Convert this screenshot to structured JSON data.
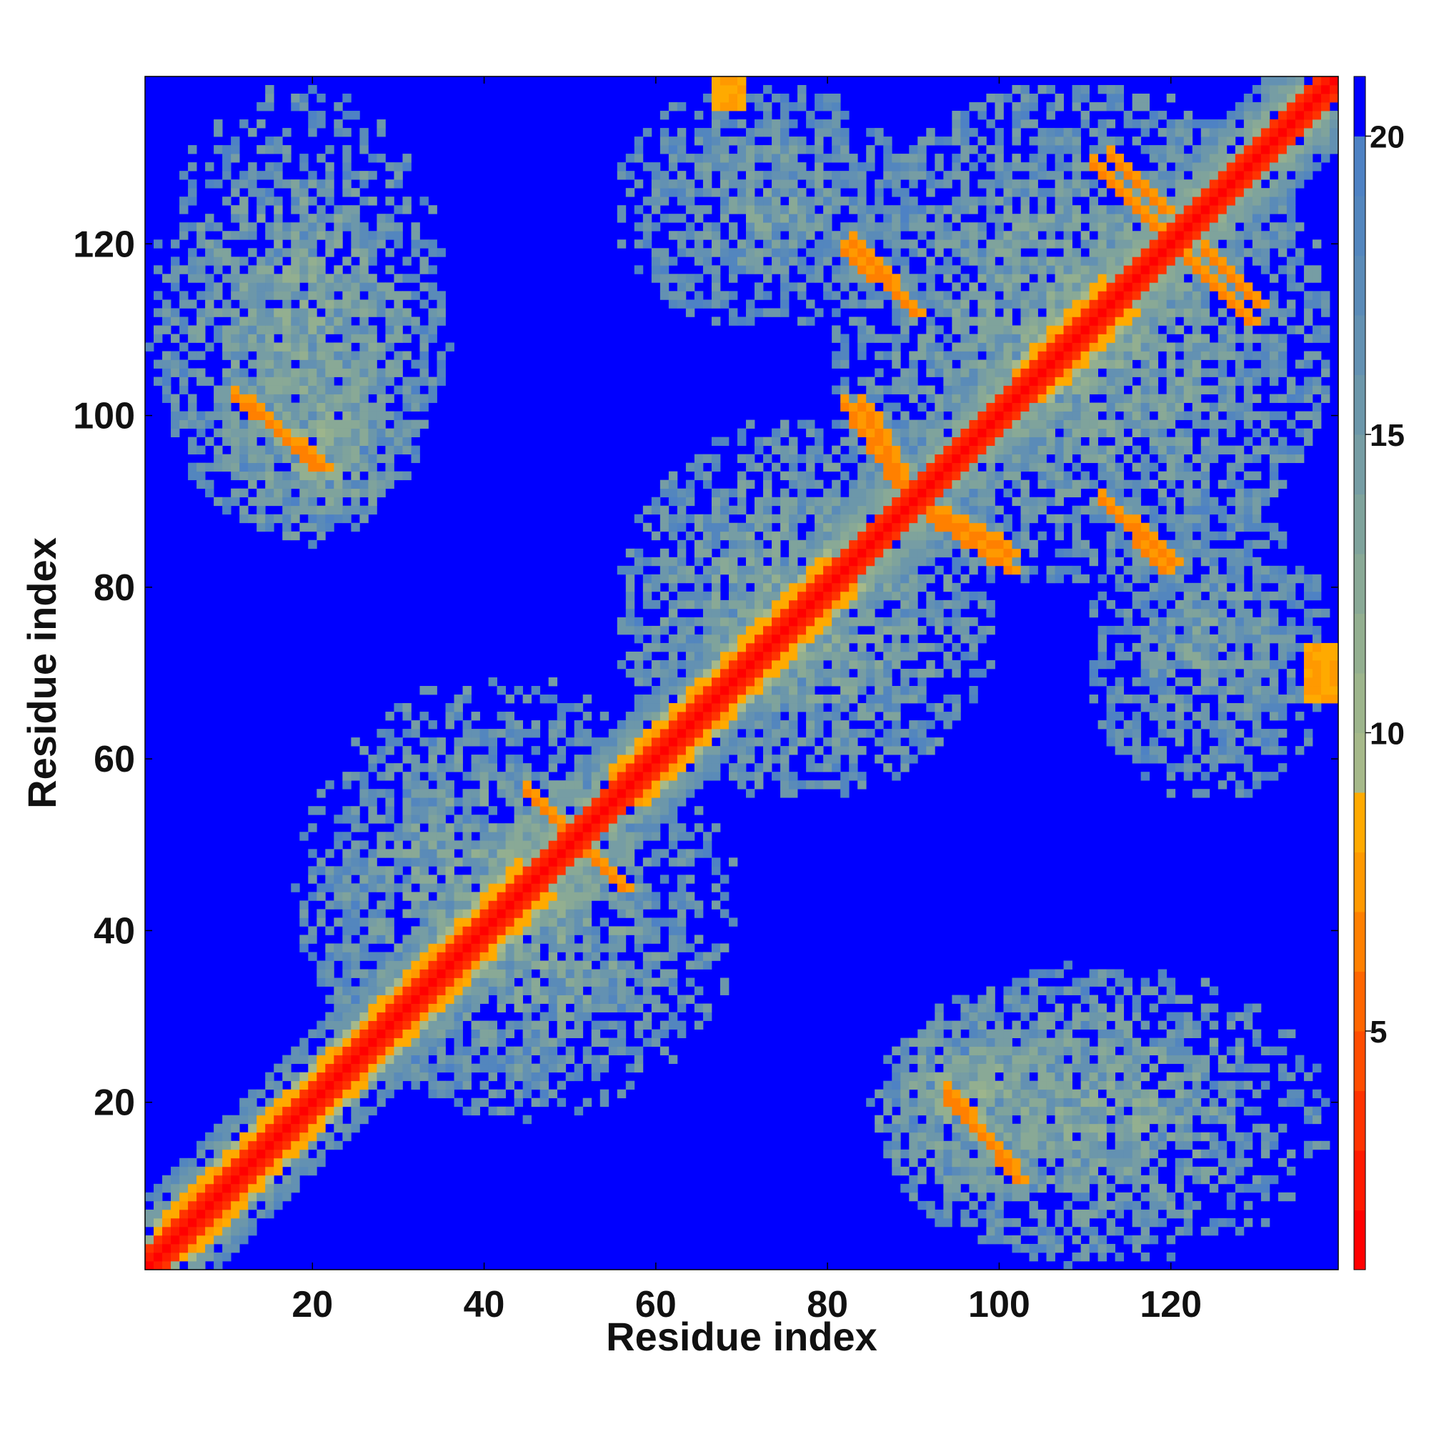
{
  "chart_data": {
    "type": "heatmap",
    "title": "",
    "xlabel": "Residue index",
    "ylabel": "Residue index",
    "n_residues": 139,
    "xlim": [
      1,
      139
    ],
    "ylim": [
      1,
      139
    ],
    "x_ticks": [
      20,
      40,
      60,
      80,
      100,
      120
    ],
    "y_ticks": [
      20,
      40,
      60,
      80,
      100,
      120
    ],
    "colorbar": {
      "range": [
        1,
        21
      ],
      "ticks": [
        5,
        10,
        15,
        20
      ],
      "bins": [
        {
          "lo": 1,
          "hi": 2,
          "color": "#ff0000"
        },
        {
          "lo": 2,
          "hi": 3,
          "color": "#ff1a00"
        },
        {
          "lo": 3,
          "hi": 4,
          "color": "#ff3300"
        },
        {
          "lo": 4,
          "hi": 5,
          "color": "#ff4d00"
        },
        {
          "lo": 5,
          "hi": 6,
          "color": "#ff6600"
        },
        {
          "lo": 6,
          "hi": 7,
          "color": "#ff8000"
        },
        {
          "lo": 7,
          "hi": 8,
          "color": "#ff9900"
        },
        {
          "lo": 8,
          "hi": 9,
          "color": "#ffaa00"
        },
        {
          "lo": 9,
          "hi": 10,
          "color": "#a6b98a"
        },
        {
          "lo": 10,
          "hi": 11,
          "color": "#9db58c"
        },
        {
          "lo": 11,
          "hi": 12,
          "color": "#93af90"
        },
        {
          "lo": 12,
          "hi": 13,
          "color": "#89a996"
        },
        {
          "lo": 13,
          "hi": 14,
          "color": "#7fa39c"
        },
        {
          "lo": 14,
          "hi": 15,
          "color": "#769da4"
        },
        {
          "lo": 15,
          "hi": 16,
          "color": "#6c97aa"
        },
        {
          "lo": 16,
          "hi": 17,
          "color": "#6391b2"
        },
        {
          "lo": 17,
          "hi": 18,
          "color": "#5a8bb8"
        },
        {
          "lo": 18,
          "hi": 19,
          "color": "#5386be"
        },
        {
          "lo": 19,
          "hi": 20,
          "color": "#4e82c4"
        },
        {
          "lo": 20,
          "hi": 21,
          "color": "#0000ff"
        }
      ]
    },
    "features": [
      {
        "kind": "diagonal",
        "from": 1,
        "to": 139,
        "value": 1
      },
      {
        "kind": "helix-band",
        "from": 2,
        "to": 36,
        "value": 6
      },
      {
        "kind": "helix-band",
        "from": 36,
        "to": 44,
        "value": 6
      },
      {
        "kind": "helix-band",
        "from": 55,
        "to": 80,
        "value": 6
      },
      {
        "kind": "helix-band",
        "from": 102,
        "to": 112,
        "value": 6
      },
      {
        "kind": "anti-contact",
        "x": [
          13,
          20
        ],
        "y": [
          101,
          94
        ],
        "value": 6
      },
      {
        "kind": "anti-contact",
        "x": [
          45,
          56
        ],
        "y": [
          56,
          45
        ],
        "value": 6
      },
      {
        "kind": "anti-contact",
        "x": [
          84,
          89
        ],
        "y": [
          101,
          92
        ],
        "value": 6
      },
      {
        "kind": "anti-contact",
        "x": [
          92,
          101
        ],
        "y": [
          88,
          82
        ],
        "value": 6
      },
      {
        "kind": "anti-contact",
        "x": [
          94,
          102
        ],
        "y": [
          21,
          11
        ],
        "value": 6
      },
      {
        "kind": "anti-contact",
        "x": [
          83,
          90
        ],
        "y": [
          120,
          112
        ],
        "value": 6
      },
      {
        "kind": "anti-contact",
        "x": [
          113,
          119
        ],
        "y": [
          130,
          124
        ],
        "value": 6
      },
      {
        "kind": "anti-contact",
        "x": [
          122,
          129
        ],
        "y": [
          118,
          111
        ],
        "value": 6
      },
      {
        "kind": "anti-contact",
        "x": [
          113,
          119
        ],
        "y": [
          89,
          82
        ],
        "value": 6
      },
      {
        "kind": "block",
        "x": [
          67,
          70
        ],
        "y": [
          136,
          139
        ],
        "value": 7
      },
      {
        "kind": "block",
        "x": [
          136,
          139
        ],
        "y": [
          67,
          73
        ],
        "value": 7
      },
      {
        "kind": "cloud",
        "x": [
          1,
          36
        ],
        "y": [
          86,
          130
        ],
        "value": 13
      },
      {
        "kind": "cloud",
        "x": [
          86,
          139
        ],
        "y": [
          1,
          36
        ],
        "value": 13
      },
      {
        "kind": "cloud",
        "x": [
          18,
          65
        ],
        "y": [
          20,
          70
        ],
        "value": 13
      },
      {
        "kind": "cloud",
        "x": [
          55,
          100
        ],
        "y": [
          55,
          100
        ],
        "value": 13
      },
      {
        "kind": "cloud",
        "x": [
          80,
          139
        ],
        "y": [
          80,
          139
        ],
        "value": 13
      },
      {
        "kind": "cloud",
        "x": [
          55,
          90
        ],
        "y": [
          110,
          139
        ],
        "value": 14
      },
      {
        "kind": "cloud",
        "x": [
          110,
          139
        ],
        "y": [
          55,
          90
        ],
        "value": 14
      },
      {
        "kind": "cloud",
        "x": [
          85,
          110
        ],
        "y": [
          10,
          30
        ],
        "value": 12
      },
      {
        "kind": "cloud",
        "x": [
          10,
          30
        ],
        "y": [
          85,
          110
        ],
        "value": 12
      }
    ]
  }
}
